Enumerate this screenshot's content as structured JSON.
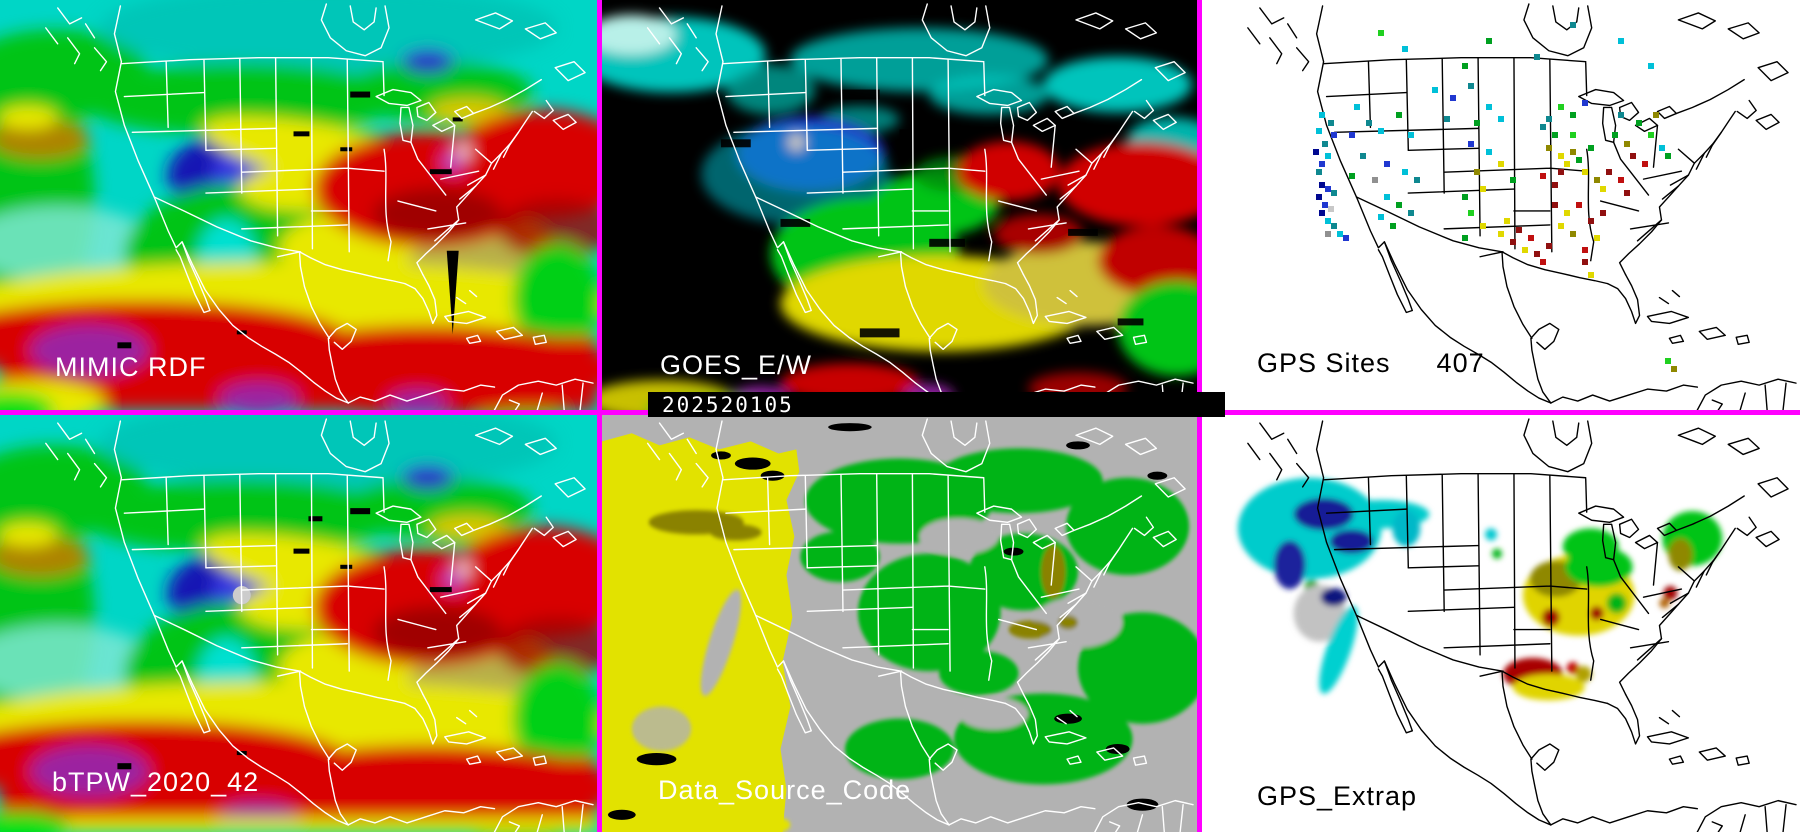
{
  "panels": {
    "mimic": {
      "label": "MIMIC RDF"
    },
    "goes": {
      "label": "GOES_E/W",
      "timestamp": "202520105"
    },
    "gps_sites": {
      "label": "GPS Sites",
      "count": "407"
    },
    "btpw": {
      "label": "bTPW_2020_42"
    },
    "data_source": {
      "label": "Data_Source_Code"
    },
    "gps_extrap": {
      "label": "GPS_Extrap"
    }
  },
  "colors": {
    "divider": "#ff00ff",
    "tpw_scale": {
      "low_cyan": "#00d6c6",
      "teal": "#00b0a8",
      "green": "#00c414",
      "dark_blue": "#1414b4",
      "blue": "#3434e0",
      "yellow": "#e8e800",
      "khaki": "#b8b048",
      "olive": "#ad8400",
      "red": "#d80000",
      "dark_red": "#a00000",
      "purple": "#9c24a0",
      "missing_black": "#000000"
    },
    "data_source_scale": {
      "background_gray": "#b2b2b2",
      "goes_west_yellow": "#e2e200",
      "goes_east_green": "#00b414",
      "mixed_olive": "#8a8200",
      "none_black": "#000000"
    },
    "site_colors": {
      "n": "#000890",
      "b": "#2038d0",
      "c": "#00c0d8",
      "t": "#0f8890",
      "g": "#00a020",
      "G": "#20d020",
      "y": "#e0d800",
      "o": "#8f8800",
      "r": "#c01010",
      "d": "#901010",
      "a": "#909090",
      "s": "#c8c8c8"
    }
  },
  "gps_sites": {
    "points": [
      [
        20,
        28,
        "c"
      ],
      [
        21.5,
        30,
        "t"
      ],
      [
        19.5,
        32,
        "c"
      ],
      [
        22,
        33,
        "b"
      ],
      [
        20.5,
        35,
        "t"
      ],
      [
        19,
        37,
        "n"
      ],
      [
        21,
        38,
        "c"
      ],
      [
        20,
        40,
        "b"
      ],
      [
        19.5,
        42,
        "t"
      ],
      [
        20,
        45,
        "n"
      ],
      [
        21,
        46,
        "b"
      ],
      [
        22,
        47,
        "t"
      ],
      [
        19.5,
        48,
        "n"
      ],
      [
        20.5,
        50,
        "b"
      ],
      [
        21.5,
        51,
        "s"
      ],
      [
        20,
        52,
        "n"
      ],
      [
        21,
        54,
        "c"
      ],
      [
        22,
        55,
        "t"
      ],
      [
        23,
        57,
        "c"
      ],
      [
        24,
        58,
        "b"
      ],
      [
        21,
        57,
        "a"
      ],
      [
        26,
        26,
        "c"
      ],
      [
        28,
        30,
        "t"
      ],
      [
        25,
        33,
        "b"
      ],
      [
        30,
        32,
        "c"
      ],
      [
        33,
        28,
        "g"
      ],
      [
        35,
        33,
        "c"
      ],
      [
        27,
        38,
        "t"
      ],
      [
        31,
        40,
        "b"
      ],
      [
        34,
        42,
        "c"
      ],
      [
        25,
        43,
        "g"
      ],
      [
        36,
        44,
        "t"
      ],
      [
        29,
        44,
        "a"
      ],
      [
        31,
        48,
        "c"
      ],
      [
        33,
        50,
        "g"
      ],
      [
        35,
        52,
        "t"
      ],
      [
        30,
        53,
        "c"
      ],
      [
        32,
        55,
        "g"
      ],
      [
        39,
        22,
        "c"
      ],
      [
        42,
        24,
        "b"
      ],
      [
        45,
        21,
        "t"
      ],
      [
        48,
        26,
        "c"
      ],
      [
        41,
        29,
        "t"
      ],
      [
        46,
        30,
        "g"
      ],
      [
        50,
        29,
        "c"
      ],
      [
        44,
        16,
        "g"
      ],
      [
        45,
        35,
        "b"
      ],
      [
        48,
        37,
        "c"
      ],
      [
        50,
        40,
        "y"
      ],
      [
        46,
        42,
        "o"
      ],
      [
        52,
        44,
        "g"
      ],
      [
        47,
        46,
        "y"
      ],
      [
        44,
        48,
        "g"
      ],
      [
        57,
        31,
        "t"
      ],
      [
        59,
        33,
        "g"
      ],
      [
        58,
        36,
        "o"
      ],
      [
        60,
        38,
        "y"
      ],
      [
        61,
        40,
        "y"
      ],
      [
        62,
        37,
        "o"
      ],
      [
        63,
        39,
        "g"
      ],
      [
        60,
        42,
        "d"
      ],
      [
        57,
        43,
        "r"
      ],
      [
        64,
        42,
        "y"
      ],
      [
        65,
        36,
        "g"
      ],
      [
        62,
        33,
        "G"
      ],
      [
        59,
        45,
        "d"
      ],
      [
        66,
        44,
        "o"
      ],
      [
        60,
        26,
        "G"
      ],
      [
        62,
        28,
        "g"
      ],
      [
        58,
        29,
        "t"
      ],
      [
        64,
        25,
        "b"
      ],
      [
        69,
        33,
        "g"
      ],
      [
        71,
        35,
        "o"
      ],
      [
        73,
        30,
        "g"
      ],
      [
        75,
        33,
        "G"
      ],
      [
        77,
        36,
        "c"
      ],
      [
        72,
        38,
        "d"
      ],
      [
        74,
        40,
        "r"
      ],
      [
        76,
        28,
        "o"
      ],
      [
        70,
        28,
        "t"
      ],
      [
        78,
        38,
        "g"
      ],
      [
        68,
        42,
        "d"
      ],
      [
        70,
        44,
        "r"
      ],
      [
        67,
        46,
        "y"
      ],
      [
        71,
        47,
        "d"
      ],
      [
        59,
        50,
        "d"
      ],
      [
        61,
        52,
        "y"
      ],
      [
        63,
        50,
        "r"
      ],
      [
        65,
        54,
        "d"
      ],
      [
        60,
        55,
        "y"
      ],
      [
        62,
        57,
        "o"
      ],
      [
        58,
        60,
        "d"
      ],
      [
        66,
        58,
        "y"
      ],
      [
        64,
        61,
        "r"
      ],
      [
        67,
        52,
        "d"
      ],
      [
        51,
        54,
        "y"
      ],
      [
        53,
        56,
        "d"
      ],
      [
        55,
        58,
        "r"
      ],
      [
        52,
        59,
        "d"
      ],
      [
        54,
        61,
        "y"
      ],
      [
        56,
        62,
        "d"
      ],
      [
        50,
        57,
        "y"
      ],
      [
        57,
        64,
        "r"
      ],
      [
        45,
        52,
        "G"
      ],
      [
        47,
        55,
        "y"
      ],
      [
        44,
        58,
        "g"
      ],
      [
        34,
        12,
        "c"
      ],
      [
        30,
        8,
        "G"
      ],
      [
        48,
        10,
        "g"
      ],
      [
        56,
        14,
        "t"
      ],
      [
        70,
        10,
        "c"
      ],
      [
        75,
        16,
        "c"
      ],
      [
        62,
        6,
        "t"
      ],
      [
        78,
        88,
        "G"
      ],
      [
        79,
        90,
        "o"
      ],
      [
        64,
        64,
        "d"
      ],
      [
        65,
        67,
        "y"
      ]
    ]
  }
}
